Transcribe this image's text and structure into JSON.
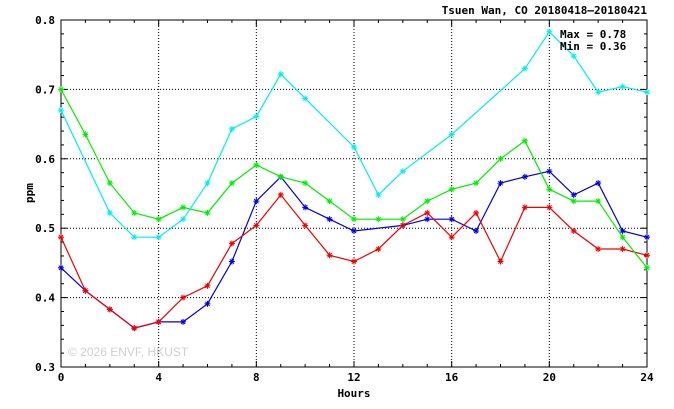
{
  "chart_data": {
    "type": "line",
    "title": "Tsuen Wan, CO 20180418–20180421",
    "xlabel": "Hours",
    "ylabel": "ppm",
    "xlim": [
      0,
      24
    ],
    "ylim": [
      0.3,
      0.8
    ],
    "xticks": [
      0,
      4,
      8,
      12,
      16,
      20,
      24
    ],
    "yticks": [
      0.3,
      0.4,
      0.5,
      0.6,
      0.7,
      0.8
    ],
    "grid": true,
    "max_label": "Max = 0.78",
    "min_label": "Min = 0.36",
    "watermark": "© 2026 ENVF, HKUST",
    "x": [
      0,
      1,
      2,
      3,
      4,
      5,
      6,
      7,
      8,
      9,
      10,
      11,
      12,
      13,
      14,
      15,
      16,
      17,
      18,
      19,
      20,
      21,
      22,
      23,
      24
    ],
    "series": [
      {
        "color": "#0000dd",
        "x": [
          0,
          1,
          2,
          3,
          4,
          5,
          6,
          7,
          8,
          9,
          10,
          11,
          12,
          14,
          15,
          16,
          17,
          18,
          19,
          20,
          21,
          22,
          23,
          24
        ],
        "values": [
          0.443,
          0.41,
          0.383,
          0.356,
          0.365,
          0.365,
          0.391,
          0.452,
          0.539,
          0.574,
          0.53,
          0.513,
          0.496,
          0.504,
          0.513,
          0.513,
          0.496,
          0.565,
          0.574,
          0.582,
          0.548,
          0.565,
          0.496,
          0.487
        ]
      },
      {
        "color": "#ee0000",
        "values": [
          0.487,
          0.41,
          0.383,
          0.356,
          0.365,
          0.4,
          0.417,
          0.478,
          0.504,
          0.548,
          0.504,
          0.461,
          0.452,
          0.47,
          0.504,
          0.522,
          0.487,
          0.522,
          0.452,
          0.53,
          0.53,
          0.496,
          0.47,
          0.47,
          0.461
        ]
      },
      {
        "color": "#00ee00",
        "x": [
          0,
          1,
          2,
          3,
          4,
          5,
          6,
          7,
          8,
          9,
          10,
          11,
          12,
          13,
          14,
          15,
          16,
          17,
          18,
          19,
          20,
          21,
          22,
          23,
          24
        ],
        "values": [
          0.7,
          0.635,
          0.565,
          0.522,
          0.513,
          0.53,
          0.522,
          0.565,
          0.591,
          0.574,
          0.565,
          0.539,
          0.513,
          0.513,
          0.513,
          0.539,
          0.556,
          0.565,
          0.6,
          0.626,
          0.556,
          0.539,
          0.539,
          0.487,
          0.443
        ]
      },
      {
        "color": "#00eeee",
        "x": [
          0,
          2,
          3,
          4,
          5,
          6,
          7,
          8,
          9,
          10,
          12,
          13,
          14,
          16,
          19,
          20,
          21,
          22,
          23,
          24
        ],
        "values": [
          0.67,
          0.522,
          0.487,
          0.487,
          0.513,
          0.565,
          0.643,
          0.661,
          0.722,
          0.687,
          0.617,
          0.548,
          0.582,
          0.635,
          0.73,
          0.783,
          0.748,
          0.696,
          0.704,
          0.696
        ]
      }
    ]
  }
}
